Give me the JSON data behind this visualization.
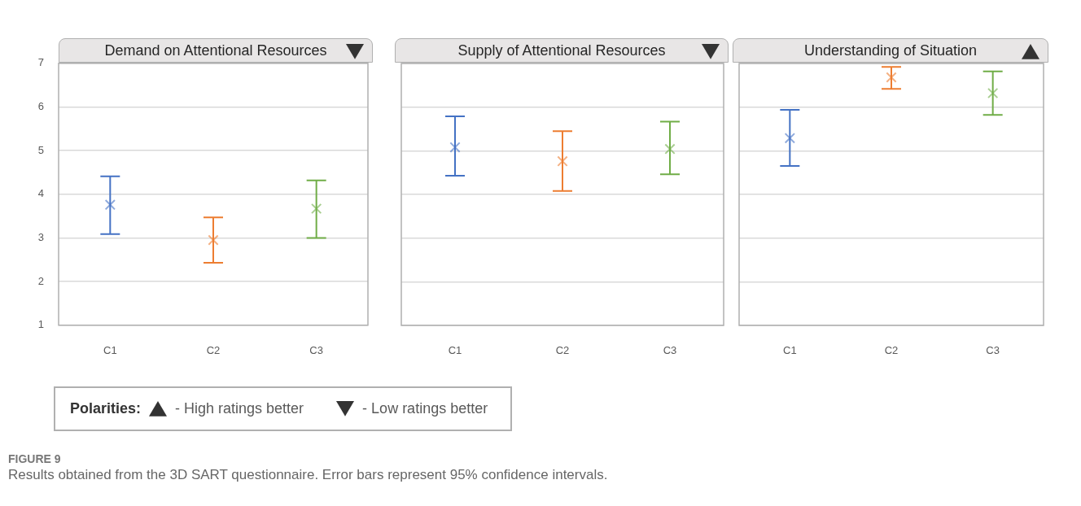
{
  "chart_data": [
    {
      "type": "scatter",
      "title": "Demand on Attentional Resources",
      "categories": [
        "C1",
        "C2",
        "C3"
      ],
      "values": [
        3.76,
        2.95,
        3.67
      ],
      "errors": [
        [
          3.09,
          4.41
        ],
        [
          2.43,
          3.47
        ],
        [
          3.0,
          4.32
        ]
      ],
      "colors": [
        "#4472c4",
        "#ed7d31",
        "#70ad47"
      ],
      "marker": "cross",
      "ylim": [
        1,
        7
      ],
      "yticks": [
        1,
        2,
        3,
        4,
        5,
        6,
        7
      ],
      "grid": "y",
      "legend": false
    },
    {
      "type": "scatter",
      "title": "Supply of Attentional Resources",
      "categories": [
        "C1",
        "C2",
        "C3"
      ],
      "values": [
        5.08,
        4.76,
        5.04
      ],
      "errors": [
        [
          4.43,
          5.79
        ],
        [
          4.08,
          5.45
        ],
        [
          4.46,
          5.67
        ]
      ],
      "colors": [
        "#4472c4",
        "#ed7d31",
        "#70ad47"
      ],
      "marker": "cross",
      "ylim": [
        1,
        7
      ],
      "yticks": [
        1,
        2,
        3,
        4,
        5,
        6,
        7
      ],
      "grid": "y",
      "legend": false,
      "tick_labels": "x"
    },
    {
      "type": "scatter",
      "title": "Understanding of Situation",
      "categories": [
        "C1",
        "C2",
        "C3"
      ],
      "values": [
        5.29,
        6.68,
        6.32
      ],
      "errors": [
        [
          4.65,
          5.94
        ],
        [
          6.42,
          6.92
        ],
        [
          5.82,
          6.82
        ]
      ],
      "colors": [
        "#4472c4",
        "#ed7d31",
        "#70ad47"
      ],
      "marker": "cross",
      "ylim": [
        1,
        7
      ],
      "yticks": [
        1,
        2,
        3,
        4,
        5,
        6,
        7
      ],
      "grid": "y",
      "legend": false,
      "tick_labels": "x"
    },
    {
      "type": "other",
      "annotations": [
        "Polarities:",
        "- High ratings better",
        "- Low ratings better"
      ]
    },
    {
      "type": "other",
      "annotations": [
        "FIGURE 9",
        "Results obtained from the 3D SART questionnaire. Error bars represent 95% confidence intervals."
      ]
    }
  ]
}
